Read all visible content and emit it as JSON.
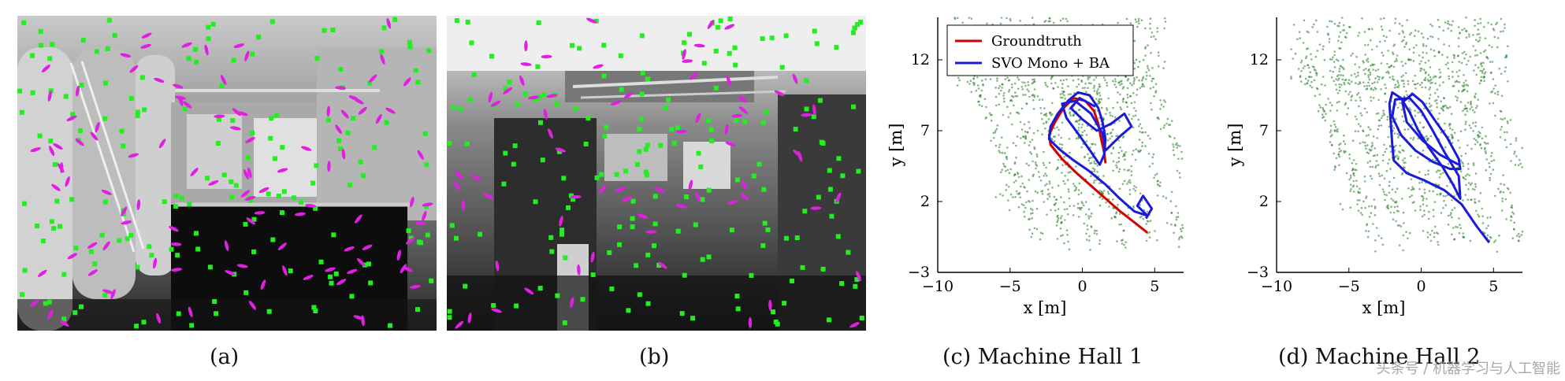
{
  "figure": {
    "captions": {
      "a": "(a)",
      "b": "(b)",
      "c": "(c) Machine Hall 1",
      "d": "(d) Machine Hall 2"
    },
    "watermark": "头条号 / 机器学习与人工智能"
  },
  "colors": {
    "groundtruth": "#d40000",
    "svo": "#1a1ad8",
    "map_points": "#1f7a1f",
    "feature_point": "#22ee22",
    "edgelet": "#e020e0"
  },
  "chart_data": [
    {
      "type": "line",
      "panel": "c",
      "title": "",
      "xlabel": "x [m]",
      "ylabel": "y [m]",
      "xlim": [
        -10,
        7
      ],
      "ylim": [
        -3,
        15
      ],
      "xticks": [
        -10,
        -5,
        0,
        5
      ],
      "yticks": [
        -3,
        2,
        7,
        12
      ],
      "xtick_labels": [
        "−10",
        "−5",
        "0",
        "5"
      ],
      "ytick_labels": [
        "−3",
        "2",
        "7",
        "12"
      ],
      "legend": {
        "placement": "top-left"
      },
      "series": [
        {
          "name": "Groundtruth",
          "color": "#d40000",
          "points": [
            [
              4.5,
              -0.2
            ],
            [
              3.5,
              0.6
            ],
            [
              2.5,
              1.4
            ],
            [
              1.5,
              2.3
            ],
            [
              0.5,
              3.2
            ],
            [
              -0.5,
              4.1
            ],
            [
              -1.4,
              5.0
            ],
            [
              -2.2,
              6.0
            ],
            [
              -2.3,
              6.7
            ],
            [
              -1.9,
              7.6
            ],
            [
              -1.3,
              8.6
            ],
            [
              -0.6,
              9.3
            ],
            [
              0.2,
              9.1
            ],
            [
              0.8,
              8.4
            ],
            [
              1.1,
              7.5
            ],
            [
              1.3,
              6.4
            ],
            [
              1.5,
              5.5
            ],
            [
              1.6,
              4.7
            ]
          ]
        },
        {
          "name": "SVO Mono + BA",
          "color": "#1a1ad8",
          "points": [
            [
              4.4,
              0.8
            ],
            [
              4.8,
              1.5
            ],
            [
              4.2,
              2.4
            ],
            [
              3.8,
              1.7
            ],
            [
              4.5,
              1.0
            ],
            [
              3.6,
              1.3
            ],
            [
              2.6,
              2.2
            ],
            [
              1.6,
              3.2
            ],
            [
              0.4,
              4.2
            ],
            [
              -0.6,
              4.9
            ],
            [
              -1.6,
              5.7
            ],
            [
              -2.3,
              6.4
            ],
            [
              -2.2,
              7.3
            ],
            [
              -1.7,
              8.2
            ],
            [
              -1.0,
              9.1
            ],
            [
              -0.3,
              9.7
            ],
            [
              0.5,
              9.5
            ],
            [
              1.1,
              8.6
            ],
            [
              1.4,
              7.6
            ],
            [
              1.6,
              6.4
            ],
            [
              1.5,
              5.3
            ],
            [
              1.2,
              4.6
            ],
            [
              0.6,
              5.5
            ],
            [
              -0.3,
              6.8
            ],
            [
              -1.1,
              7.9
            ],
            [
              -1.4,
              8.9
            ],
            [
              -0.5,
              9.1
            ],
            [
              0.6,
              8.2
            ],
            [
              1.4,
              6.8
            ],
            [
              1.6,
              5.6
            ],
            [
              2.6,
              6.6
            ],
            [
              3.4,
              7.3
            ],
            [
              2.9,
              8.2
            ],
            [
              2.0,
              7.5
            ],
            [
              1.0,
              7.0
            ],
            [
              0.0,
              7.8
            ],
            [
              -0.8,
              8.6
            ],
            [
              -0.2,
              9.3
            ],
            [
              0.9,
              8.7
            ]
          ]
        }
      ],
      "map_points": "scattered 3D landmarks (green)"
    },
    {
      "type": "line",
      "panel": "d",
      "title": "",
      "xlabel": "x [m]",
      "ylabel": "y [m]",
      "xlim": [
        -10,
        7
      ],
      "ylim": [
        -3,
        15
      ],
      "xticks": [
        -10,
        -5,
        0,
        5
      ],
      "yticks": [
        -3,
        2,
        7,
        12
      ],
      "xtick_labels": [
        "−10",
        "−5",
        "0",
        "5"
      ],
      "ytick_labels": [
        "−3",
        "2",
        "7",
        "12"
      ],
      "series": [
        {
          "name": "",
          "color": "#1a1ad8",
          "points": [
            [
              4.7,
              -0.9
            ],
            [
              3.8,
              0.3
            ],
            [
              2.8,
              1.8
            ],
            [
              1.6,
              2.8
            ],
            [
              0.2,
              3.5
            ],
            [
              -1.0,
              4.0
            ],
            [
              -1.9,
              4.9
            ],
            [
              -2.0,
              6.0
            ],
            [
              -2.1,
              7.5
            ],
            [
              -2.2,
              8.9
            ],
            [
              -2.0,
              9.7
            ],
            [
              -1.4,
              9.3
            ],
            [
              -0.8,
              8.3
            ],
            [
              -0.2,
              7.0
            ],
            [
              0.6,
              5.7
            ],
            [
              1.5,
              4.4
            ],
            [
              2.2,
              3.2
            ],
            [
              2.7,
              2.2
            ],
            [
              2.6,
              3.8
            ],
            [
              1.6,
              5.5
            ],
            [
              0.8,
              7.0
            ],
            [
              0.0,
              8.4
            ],
            [
              -0.8,
              9.3
            ],
            [
              -1.8,
              9.2
            ],
            [
              -2.0,
              8.0
            ],
            [
              -1.4,
              6.7
            ],
            [
              -0.4,
              5.6
            ],
            [
              0.8,
              4.8
            ],
            [
              2.0,
              4.3
            ],
            [
              2.7,
              4.3
            ],
            [
              2.6,
              5.0
            ],
            [
              1.8,
              6.5
            ],
            [
              0.9,
              7.8
            ],
            [
              0.1,
              9.0
            ],
            [
              -0.6,
              9.6
            ],
            [
              -1.3,
              9.0
            ],
            [
              -1.0,
              7.6
            ],
            [
              0.1,
              6.3
            ],
            [
              1.3,
              5.3
            ],
            [
              2.6,
              4.6
            ]
          ]
        }
      ],
      "map_points": "scattered 3D landmarks (green)"
    }
  ]
}
